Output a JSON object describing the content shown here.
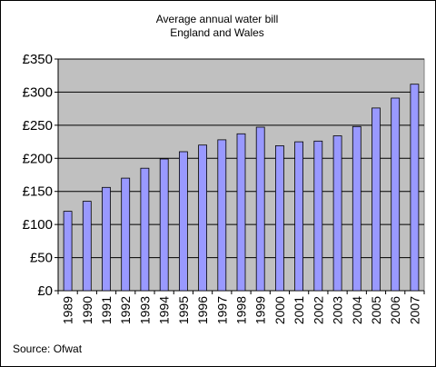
{
  "chart_data": {
    "type": "bar",
    "title": "Average annual water bill",
    "subtitle": "England and Wales",
    "source": "Source:  Ofwat",
    "categories": [
      "1989",
      "1990",
      "1991",
      "1992",
      "1993",
      "1994",
      "1995",
      "1996",
      "1997",
      "1998",
      "1999",
      "2000",
      "2001",
      "2002",
      "2003",
      "2004",
      "2005",
      "2006",
      "2007"
    ],
    "values": [
      120,
      135,
      156,
      170,
      185,
      199,
      210,
      220,
      228,
      237,
      247,
      219,
      225,
      226,
      234,
      248,
      276,
      291,
      312
    ],
    "ylim": [
      0,
      350
    ],
    "yticks": [
      0,
      50,
      100,
      150,
      200,
      250,
      300,
      350
    ],
    "ytick_labels": [
      "£0",
      "£50",
      "£100",
      "£150",
      "£200",
      "£250",
      "£300",
      "£350"
    ],
    "grid": true,
    "colors": {
      "bar": "#9999ff",
      "plot_bg": "#c0c0c0"
    }
  }
}
